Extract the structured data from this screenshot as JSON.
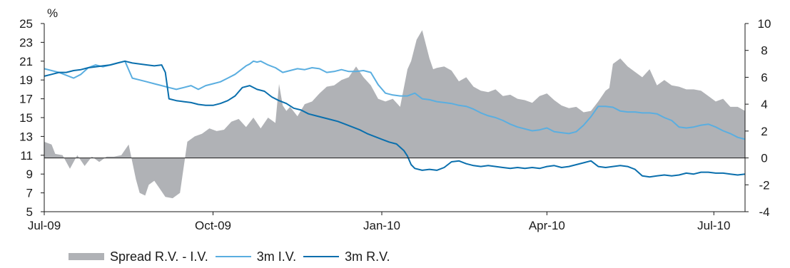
{
  "chart_data": {
    "type": "line",
    "left_axis": {
      "unit": "%",
      "ticks": [
        5,
        7,
        9,
        11,
        13,
        15,
        17,
        19,
        21,
        23,
        25
      ],
      "ylim": [
        5,
        25
      ]
    },
    "right_axis": {
      "ticks": [
        -4,
        -2,
        0,
        2,
        4,
        6,
        8,
        10
      ],
      "ylim": [
        -4,
        10
      ]
    },
    "x_axis": {
      "ticks": [
        "Jul-09",
        "Oct-09",
        "Jan-10",
        "Apr-10",
        "Jul-10"
      ],
      "tick_days": [
        0,
        92,
        184,
        274,
        365
      ],
      "xlim": [
        0,
        382
      ]
    },
    "series": [
      {
        "name": "Spread R.V. - I.V.",
        "kind": "area",
        "axis": "right",
        "color": "#b0b2b6",
        "x": [
          0,
          4,
          6,
          10,
          14,
          18,
          22,
          26,
          30,
          34,
          38,
          42,
          46,
          50,
          52,
          55,
          57,
          60,
          63,
          66,
          70,
          74,
          78,
          82,
          86,
          90,
          94,
          98,
          102,
          106,
          110,
          114,
          118,
          122,
          126,
          128,
          130,
          132,
          134,
          138,
          142,
          146,
          150,
          154,
          158,
          162,
          166,
          170,
          174,
          178,
          182,
          186,
          190,
          194,
          198,
          200,
          203,
          206,
          210,
          212,
          214,
          218,
          222,
          226,
          230,
          234,
          238,
          242,
          246,
          250,
          254,
          258,
          262,
          266,
          270,
          274,
          278,
          282,
          286,
          290,
          294,
          298,
          302,
          306,
          308,
          310,
          314,
          318,
          322,
          326,
          330,
          334,
          338,
          342,
          346,
          350,
          354,
          358,
          362,
          366,
          370,
          374,
          378,
          382
        ],
        "y": [
          1.2,
          1.0,
          0.3,
          0.2,
          -0.8,
          0.2,
          -0.6,
          0.1,
          -0.3,
          0.1,
          0.1,
          0.2,
          1.0,
          -1.6,
          -2.6,
          -2.8,
          -2.0,
          -1.7,
          -2.3,
          -2.9,
          -3.0,
          -2.6,
          1.2,
          1.6,
          1.8,
          2.2,
          2.0,
          2.1,
          2.7,
          2.9,
          2.3,
          3.0,
          2.2,
          3.0,
          2.6,
          5.5,
          3.9,
          3.5,
          3.8,
          3.1,
          4.0,
          4.2,
          4.8,
          5.3,
          5.4,
          5.8,
          6.0,
          6.8,
          6.0,
          5.4,
          4.4,
          4.2,
          4.4,
          3.8,
          6.6,
          7.2,
          8.8,
          9.5,
          7.4,
          6.6,
          6.7,
          6.8,
          6.5,
          5.7,
          6.0,
          5.3,
          5.0,
          4.9,
          5.1,
          4.6,
          4.7,
          4.4,
          4.3,
          4.1,
          4.6,
          4.8,
          4.3,
          3.9,
          3.7,
          3.8,
          3.4,
          3.5,
          4.2,
          5.0,
          5.2,
          7.0,
          7.4,
          6.8,
          6.4,
          6.0,
          6.6,
          5.4,
          5.8,
          5.4,
          5.3,
          5.1,
          5.1,
          5.0,
          4.6,
          4.2,
          4.4,
          3.8,
          3.8,
          3.5
        ]
      },
      {
        "name": "3m I.V.",
        "kind": "line",
        "axis": "left",
        "color": "#5aaee0",
        "x": [
          0,
          4,
          8,
          12,
          16,
          20,
          24,
          28,
          32,
          36,
          40,
          44,
          48,
          52,
          56,
          60,
          64,
          68,
          72,
          76,
          80,
          84,
          88,
          92,
          96,
          100,
          104,
          108,
          110,
          112,
          114,
          116,
          118,
          122,
          126,
          130,
          134,
          138,
          142,
          146,
          150,
          154,
          158,
          162,
          166,
          170,
          174,
          178,
          182,
          186,
          190,
          194,
          198,
          202,
          206,
          210,
          214,
          218,
          222,
          226,
          230,
          234,
          238,
          242,
          246,
          250,
          254,
          258,
          262,
          266,
          270,
          274,
          278,
          282,
          286,
          290,
          294,
          298,
          302,
          306,
          310,
          314,
          318,
          322,
          326,
          330,
          334,
          338,
          342,
          346,
          350,
          354,
          358,
          362,
          366,
          370,
          374,
          378,
          382
        ],
        "y": [
          20.2,
          20.0,
          19.8,
          19.5,
          19.2,
          19.6,
          20.3,
          20.6,
          20.4,
          20.6,
          20.8,
          21.0,
          19.2,
          19.0,
          18.8,
          18.6,
          18.4,
          18.2,
          18.0,
          18.2,
          18.4,
          18.0,
          18.4,
          18.6,
          18.8,
          19.2,
          19.6,
          20.2,
          20.5,
          20.7,
          21.0,
          20.9,
          21.0,
          20.6,
          20.3,
          19.8,
          20.0,
          20.2,
          20.1,
          20.3,
          20.2,
          19.8,
          19.9,
          20.1,
          19.9,
          19.9,
          20.0,
          19.8,
          18.5,
          17.6,
          17.4,
          17.3,
          17.3,
          17.6,
          17.0,
          16.9,
          16.7,
          16.6,
          16.5,
          16.3,
          16.2,
          15.9,
          15.5,
          15.2,
          15.0,
          14.7,
          14.3,
          14.0,
          13.8,
          13.6,
          13.7,
          13.9,
          13.5,
          13.4,
          13.3,
          13.5,
          14.2,
          15.1,
          16.2,
          16.2,
          16.1,
          15.7,
          15.6,
          15.6,
          15.5,
          15.5,
          15.4,
          15.0,
          14.7,
          14.0,
          13.9,
          14.0,
          14.2,
          14.3,
          14.0,
          13.6,
          13.3,
          12.9,
          12.7
        ]
      },
      {
        "name": "3m R.V.",
        "kind": "line",
        "axis": "left",
        "color": "#0a6fad",
        "x": [
          0,
          4,
          8,
          12,
          16,
          20,
          24,
          28,
          32,
          36,
          40,
          44,
          48,
          52,
          56,
          60,
          64,
          66,
          68,
          72,
          76,
          80,
          84,
          88,
          92,
          96,
          100,
          104,
          108,
          112,
          116,
          120,
          124,
          128,
          132,
          136,
          140,
          144,
          148,
          152,
          156,
          160,
          164,
          168,
          172,
          176,
          180,
          184,
          188,
          192,
          196,
          198,
          200,
          202,
          206,
          210,
          214,
          218,
          222,
          226,
          230,
          234,
          238,
          242,
          246,
          250,
          254,
          258,
          262,
          266,
          270,
          274,
          278,
          282,
          286,
          290,
          294,
          298,
          302,
          306,
          310,
          314,
          318,
          322,
          326,
          330,
          334,
          338,
          342,
          346,
          350,
          354,
          358,
          362,
          366,
          370,
          374,
          378,
          382
        ],
        "y": [
          19.4,
          19.6,
          19.8,
          19.8,
          20.0,
          20.1,
          20.3,
          20.4,
          20.5,
          20.6,
          20.8,
          21.0,
          20.8,
          20.7,
          20.6,
          20.5,
          20.6,
          19.8,
          17.0,
          16.8,
          16.7,
          16.6,
          16.4,
          16.3,
          16.3,
          16.5,
          16.8,
          17.3,
          18.2,
          18.4,
          18.0,
          17.8,
          17.2,
          16.8,
          16.5,
          16.0,
          15.8,
          15.4,
          15.2,
          15.0,
          14.8,
          14.6,
          14.3,
          14.0,
          13.7,
          13.3,
          13.0,
          12.7,
          12.4,
          12.2,
          11.5,
          10.9,
          10.0,
          9.6,
          9.4,
          9.5,
          9.4,
          9.7,
          10.3,
          10.4,
          10.1,
          9.9,
          9.8,
          9.9,
          9.8,
          9.7,
          9.6,
          9.7,
          9.6,
          9.7,
          9.6,
          9.8,
          9.9,
          9.7,
          9.8,
          10.0,
          10.2,
          10.4,
          9.8,
          9.7,
          9.8,
          9.9,
          9.8,
          9.5,
          8.8,
          8.7,
          8.8,
          8.9,
          8.8,
          8.9,
          9.1,
          9.0,
          9.2,
          9.2,
          9.1,
          9.1,
          9.0,
          8.9,
          9.0
        ]
      }
    ]
  }
}
